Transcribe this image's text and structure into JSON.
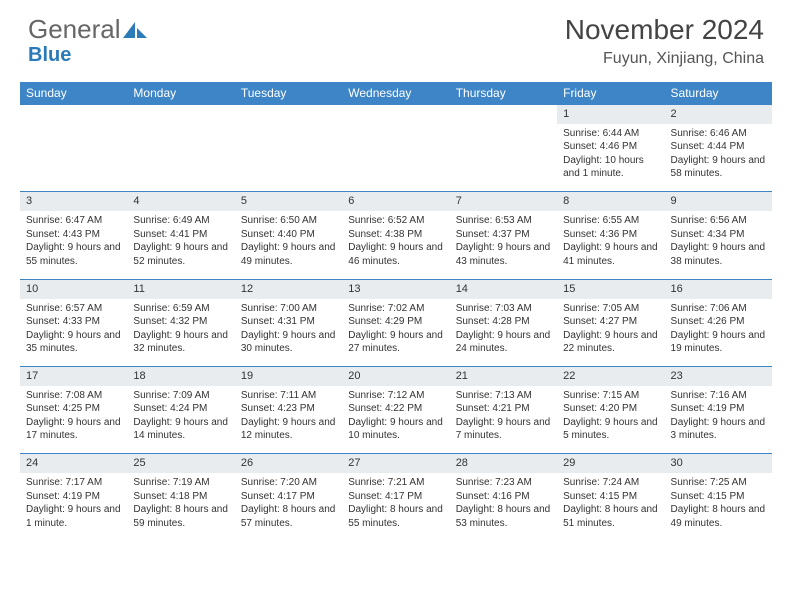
{
  "logo": {
    "text1": "General",
    "text2": "Blue"
  },
  "title": "November 2024",
  "location": "Fuyun, Xinjiang, China",
  "colors": {
    "header_bg": "#3d85c6",
    "header_text": "#ffffff",
    "daynum_bg": "#e8ecef",
    "border": "#3d85c6",
    "text": "#333333",
    "logo_blue": "#2b7bb9"
  },
  "daysOfWeek": [
    "Sunday",
    "Monday",
    "Tuesday",
    "Wednesday",
    "Thursday",
    "Friday",
    "Saturday"
  ],
  "weeks": [
    [
      null,
      null,
      null,
      null,
      null,
      {
        "n": "1",
        "sr": "6:44 AM",
        "ss": "4:46 PM",
        "dl": "10 hours and 1 minute."
      },
      {
        "n": "2",
        "sr": "6:46 AM",
        "ss": "4:44 PM",
        "dl": "9 hours and 58 minutes."
      }
    ],
    [
      {
        "n": "3",
        "sr": "6:47 AM",
        "ss": "4:43 PM",
        "dl": "9 hours and 55 minutes."
      },
      {
        "n": "4",
        "sr": "6:49 AM",
        "ss": "4:41 PM",
        "dl": "9 hours and 52 minutes."
      },
      {
        "n": "5",
        "sr": "6:50 AM",
        "ss": "4:40 PM",
        "dl": "9 hours and 49 minutes."
      },
      {
        "n": "6",
        "sr": "6:52 AM",
        "ss": "4:38 PM",
        "dl": "9 hours and 46 minutes."
      },
      {
        "n": "7",
        "sr": "6:53 AM",
        "ss": "4:37 PM",
        "dl": "9 hours and 43 minutes."
      },
      {
        "n": "8",
        "sr": "6:55 AM",
        "ss": "4:36 PM",
        "dl": "9 hours and 41 minutes."
      },
      {
        "n": "9",
        "sr": "6:56 AM",
        "ss": "4:34 PM",
        "dl": "9 hours and 38 minutes."
      }
    ],
    [
      {
        "n": "10",
        "sr": "6:57 AM",
        "ss": "4:33 PM",
        "dl": "9 hours and 35 minutes."
      },
      {
        "n": "11",
        "sr": "6:59 AM",
        "ss": "4:32 PM",
        "dl": "9 hours and 32 minutes."
      },
      {
        "n": "12",
        "sr": "7:00 AM",
        "ss": "4:31 PM",
        "dl": "9 hours and 30 minutes."
      },
      {
        "n": "13",
        "sr": "7:02 AM",
        "ss": "4:29 PM",
        "dl": "9 hours and 27 minutes."
      },
      {
        "n": "14",
        "sr": "7:03 AM",
        "ss": "4:28 PM",
        "dl": "9 hours and 24 minutes."
      },
      {
        "n": "15",
        "sr": "7:05 AM",
        "ss": "4:27 PM",
        "dl": "9 hours and 22 minutes."
      },
      {
        "n": "16",
        "sr": "7:06 AM",
        "ss": "4:26 PM",
        "dl": "9 hours and 19 minutes."
      }
    ],
    [
      {
        "n": "17",
        "sr": "7:08 AM",
        "ss": "4:25 PM",
        "dl": "9 hours and 17 minutes."
      },
      {
        "n": "18",
        "sr": "7:09 AM",
        "ss": "4:24 PM",
        "dl": "9 hours and 14 minutes."
      },
      {
        "n": "19",
        "sr": "7:11 AM",
        "ss": "4:23 PM",
        "dl": "9 hours and 12 minutes."
      },
      {
        "n": "20",
        "sr": "7:12 AM",
        "ss": "4:22 PM",
        "dl": "9 hours and 10 minutes."
      },
      {
        "n": "21",
        "sr": "7:13 AM",
        "ss": "4:21 PM",
        "dl": "9 hours and 7 minutes."
      },
      {
        "n": "22",
        "sr": "7:15 AM",
        "ss": "4:20 PM",
        "dl": "9 hours and 5 minutes."
      },
      {
        "n": "23",
        "sr": "7:16 AM",
        "ss": "4:19 PM",
        "dl": "9 hours and 3 minutes."
      }
    ],
    [
      {
        "n": "24",
        "sr": "7:17 AM",
        "ss": "4:19 PM",
        "dl": "9 hours and 1 minute."
      },
      {
        "n": "25",
        "sr": "7:19 AM",
        "ss": "4:18 PM",
        "dl": "8 hours and 59 minutes."
      },
      {
        "n": "26",
        "sr": "7:20 AM",
        "ss": "4:17 PM",
        "dl": "8 hours and 57 minutes."
      },
      {
        "n": "27",
        "sr": "7:21 AM",
        "ss": "4:17 PM",
        "dl": "8 hours and 55 minutes."
      },
      {
        "n": "28",
        "sr": "7:23 AM",
        "ss": "4:16 PM",
        "dl": "8 hours and 53 minutes."
      },
      {
        "n": "29",
        "sr": "7:24 AM",
        "ss": "4:15 PM",
        "dl": "8 hours and 51 minutes."
      },
      {
        "n": "30",
        "sr": "7:25 AM",
        "ss": "4:15 PM",
        "dl": "8 hours and 49 minutes."
      }
    ]
  ],
  "labels": {
    "sunrise": "Sunrise:",
    "sunset": "Sunset:",
    "daylight": "Daylight:"
  }
}
